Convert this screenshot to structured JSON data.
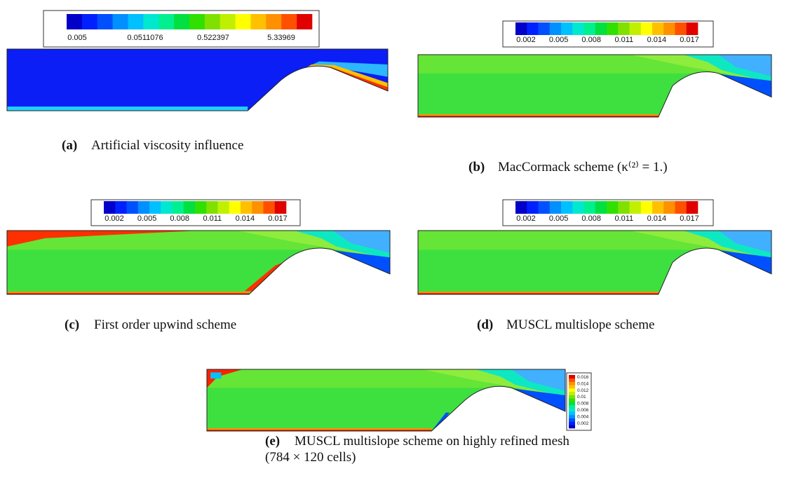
{
  "panels": [
    {
      "label": "(a)",
      "caption": "Artificial viscosity influence",
      "colorbar": [
        "0.005",
        "0.0511076",
        "0.522397",
        "5.33969"
      ]
    },
    {
      "label": "(b)",
      "caption": "MacCormack scheme (κ⁽²⁾ = 1.)",
      "colorbar": [
        "0.002",
        "0.005",
        "0.008",
        "0.011",
        "0.014",
        "0.017"
      ]
    },
    {
      "label": "(c)",
      "caption": "First order upwind scheme",
      "colorbar": [
        "0.002",
        "0.005",
        "0.008",
        "0.011",
        "0.014",
        "0.017"
      ]
    },
    {
      "label": "(d)",
      "caption": "MUSCL multislope scheme",
      "colorbar": [
        "0.002",
        "0.005",
        "0.008",
        "0.011",
        "0.014",
        "0.017"
      ]
    },
    {
      "label": "(e)",
      "caption": "MUSCL multislope scheme on highly refined mesh",
      "caption_2": "(784 × 120 cells)",
      "colorbar": [
        "0.016",
        "0.014",
        "0.012",
        "0.01",
        "0.008",
        "0.006",
        "0.004",
        "0.002"
      ]
    }
  ]
}
